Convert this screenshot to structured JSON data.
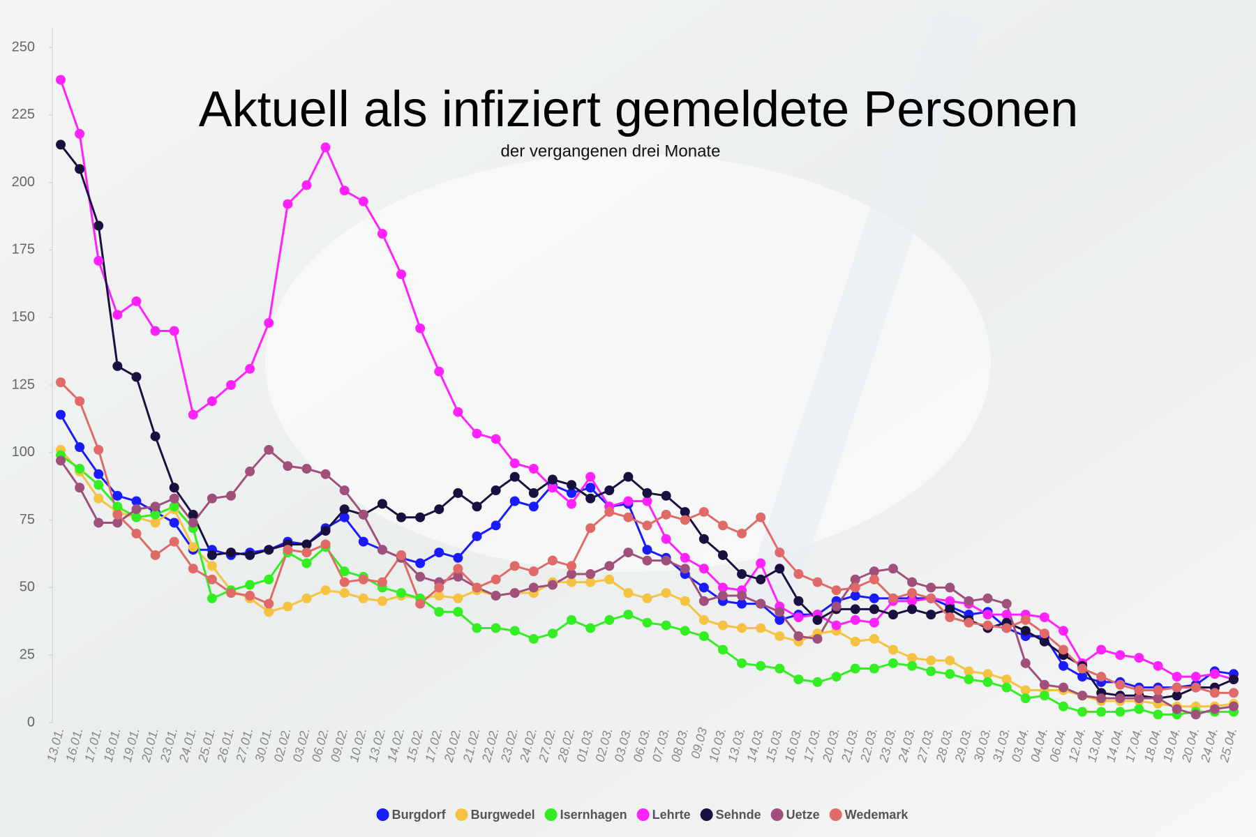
{
  "chart_data": {
    "type": "line",
    "title": "Aktuell als infiziert gemeldete Personen",
    "subtitle": "der vergangenen drei Monate",
    "categories": [
      "13.01.",
      "16.01.",
      "17.01.",
      "18.01.",
      "19.01.",
      "20.01.",
      "23.01.",
      "24.01.",
      "25.01.",
      "26.01.",
      "27.01.",
      "30.01.",
      "02.02.",
      "03.02.",
      "06.02.",
      "09.02.",
      "10.02.",
      "13.02.",
      "14.02.",
      "15.02.",
      "17.02.",
      "20.02.",
      "21.02.",
      "22.02.",
      "23.02.",
      "24.02.",
      "27.02.",
      "28.02.",
      "01.03.",
      "02.03.",
      "03.03.",
      "06.03.",
      "07.03.",
      "08.03.",
      "09.03",
      "10.03.",
      "13.03.",
      "14.03.",
      "15.03.",
      "16.03.",
      "17.03.",
      "20.03.",
      "21.03.",
      "22.03.",
      "23.03.",
      "24.03.",
      "27.03.",
      "28.03.",
      "29.03.",
      "30.03.",
      "31.03.",
      "03.04.",
      "04.04.",
      "06.04.",
      "12.04.",
      "13.04.",
      "14.04.",
      "17.04.",
      "18.04.",
      "19.04.",
      "20.04.",
      "24.04.",
      "25.04."
    ],
    "series": [
      {
        "name": "Burgdorf",
        "color": "#1a1aff",
        "values": [
          114,
          102,
          92,
          84,
          82,
          78,
          74,
          64,
          64,
          62,
          63,
          64,
          67,
          66,
          72,
          76,
          67,
          64,
          61,
          59,
          63,
          61,
          69,
          73,
          82,
          80,
          88,
          85,
          87,
          80,
          81,
          64,
          61,
          55,
          50,
          45,
          44,
          44,
          38,
          40,
          40,
          45,
          47,
          46,
          46,
          46,
          46,
          43,
          40,
          41,
          35,
          32,
          32,
          21,
          17,
          15,
          15,
          13,
          13,
          13,
          14,
          19,
          18
        ]
      },
      {
        "name": "Burgwedel",
        "color": "#f5c242",
        "values": [
          101,
          93,
          83,
          78,
          76,
          74,
          79,
          65,
          58,
          49,
          46,
          41,
          43,
          46,
          49,
          48,
          46,
          45,
          47,
          46,
          47,
          46,
          49,
          47,
          48,
          48,
          52,
          52,
          52,
          53,
          48,
          46,
          48,
          45,
          38,
          36,
          35,
          35,
          32,
          30,
          33,
          34,
          30,
          31,
          27,
          24,
          23,
          23,
          19,
          18,
          16,
          12,
          12,
          12,
          10,
          8,
          8,
          8,
          7,
          6,
          6,
          6,
          7
        ]
      },
      {
        "name": "Isernhagen",
        "color": "#33ee22",
        "values": [
          99,
          94,
          88,
          80,
          76,
          77,
          80,
          72,
          46,
          49,
          51,
          53,
          63,
          59,
          65,
          56,
          54,
          50,
          48,
          46,
          41,
          41,
          35,
          35,
          34,
          31,
          33,
          38,
          35,
          38,
          40,
          37,
          36,
          34,
          32,
          27,
          22,
          21,
          20,
          16,
          15,
          17,
          20,
          20,
          22,
          21,
          19,
          18,
          16,
          15,
          13,
          9,
          10,
          6,
          4,
          4,
          4,
          5,
          3,
          3,
          4,
          4,
          4
        ]
      },
      {
        "name": "Lehrte",
        "color": "#ff22ff",
        "values": [
          238,
          218,
          171,
          151,
          156,
          145,
          145,
          114,
          119,
          125,
          131,
          148,
          192,
          199,
          213,
          197,
          193,
          181,
          166,
          146,
          130,
          115,
          107,
          105,
          96,
          94,
          87,
          81,
          91,
          80,
          82,
          82,
          68,
          61,
          57,
          50,
          49,
          59,
          43,
          39,
          40,
          36,
          38,
          37,
          45,
          45,
          46,
          45,
          44,
          40,
          40,
          40,
          39,
          34,
          22,
          27,
          25,
          24,
          21,
          17,
          17,
          18,
          16
        ]
      },
      {
        "name": "Sehnde",
        "color": "#1a1040",
        "values": [
          214,
          205,
          184,
          132,
          128,
          106,
          87,
          77,
          62,
          63,
          62,
          64,
          66,
          66,
          71,
          79,
          77,
          81,
          76,
          76,
          79,
          85,
          80,
          86,
          91,
          85,
          90,
          88,
          83,
          86,
          91,
          85,
          84,
          78,
          68,
          62,
          55,
          53,
          57,
          45,
          38,
          42,
          42,
          42,
          40,
          42,
          40,
          42,
          38,
          35,
          37,
          34,
          30,
          25,
          21,
          11,
          10,
          10,
          9,
          10,
          13,
          13,
          16
        ]
      },
      {
        "name": "Uetze",
        "color": "#a0507a",
        "values": [
          97,
          87,
          74,
          74,
          79,
          80,
          83,
          74,
          83,
          84,
          93,
          101,
          95,
          94,
          92,
          86,
          77,
          64,
          61,
          54,
          52,
          54,
          50,
          47,
          48,
          50,
          51,
          55,
          55,
          58,
          63,
          60,
          60,
          57,
          45,
          47,
          47,
          44,
          41,
          32,
          31,
          43,
          53,
          56,
          57,
          52,
          50,
          50,
          45,
          46,
          44,
          22,
          14,
          13,
          10,
          9,
          9,
          9,
          9,
          5,
          3,
          5,
          6
        ]
      },
      {
        "name": "Wedemark",
        "color": "#e06a68",
        "values": [
          126,
          119,
          101,
          77,
          70,
          62,
          67,
          57,
          53,
          48,
          47,
          44,
          64,
          63,
          66,
          52,
          53,
          52,
          62,
          44,
          50,
          57,
          50,
          53,
          58,
          56,
          60,
          58,
          72,
          78,
          76,
          73,
          77,
          75,
          78,
          73,
          70,
          76,
          63,
          55,
          52,
          49,
          50,
          53,
          46,
          48,
          46,
          39,
          37,
          36,
          35,
          38,
          33,
          27,
          20,
          17,
          14,
          12,
          12,
          13,
          13,
          11,
          11
        ]
      }
    ],
    "ylim": [
      0,
      250
    ],
    "yticks": [
      0,
      25,
      50,
      75,
      100,
      125,
      150,
      175,
      200,
      225,
      250
    ],
    "grid": false
  }
}
